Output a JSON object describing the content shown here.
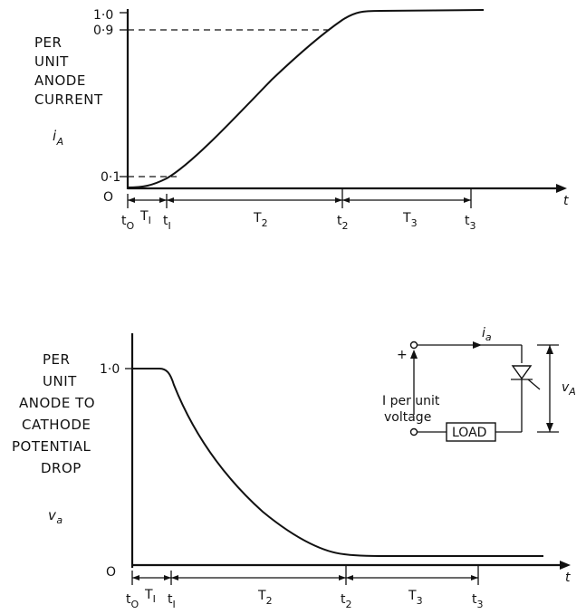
{
  "top_graph": {
    "label_lines": [
      "PER",
      "UNIT",
      "ANODE",
      "CURRENT"
    ],
    "var_symbol": "i",
    "var_sub": "A",
    "y_ticks": [
      "1·0",
      "0·9",
      "0·1",
      "O"
    ],
    "t_label": "t",
    "time_marks": {
      "t0": "t",
      "t0_sub": "O",
      "T1": "T",
      "T1_sub": "I",
      "t1": "t",
      "t1_sub": "I",
      "T2": "T",
      "T2_sub": "2",
      "t2": "t",
      "t2_sub": "2",
      "T3": "T",
      "T3_sub": "3",
      "t3": "t",
      "t3_sub": "3"
    }
  },
  "bottom_graph": {
    "label_lines": [
      "PER",
      "UNIT",
      "ANODE TO",
      "CATHODE",
      "POTENTIAL",
      "DROP"
    ],
    "var_symbol": "v",
    "var_sub": "a",
    "y_ticks": [
      "1·0",
      "O"
    ],
    "t_label": "t",
    "time_marks": {
      "t0": "t",
      "t0_sub": "O",
      "T1": "T",
      "T1_sub": "I",
      "t1": "t",
      "t1_sub": "I",
      "T2": "T",
      "T2_sub": "2",
      "t2": "t",
      "t2_sub": "2",
      "T3": "T",
      "T3_sub": "3",
      "t3": "t",
      "t3_sub": "3"
    }
  },
  "circuit": {
    "plus": "+",
    "current_symbol": "i",
    "current_sub": "a",
    "voltage_symbol": "v",
    "voltage_sub": "A",
    "source_line1": "I per unit",
    "source_line2": "voltage",
    "load_label": "LOAD"
  }
}
